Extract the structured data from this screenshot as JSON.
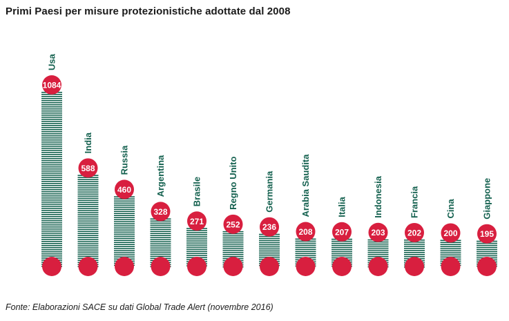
{
  "title": "Primi Paesi per misure protezionistiche adottate dal 2008",
  "source": "Fonte: Elaborazioni SACE su dati Global Trade Alert (novembre 2016)",
  "colors": {
    "bar": "#13604e",
    "circle": "#d81f3f",
    "label": "#13604e",
    "value_text": "#ffffff"
  },
  "chart_data": {
    "type": "bar",
    "categories": [
      "Usa",
      "India",
      "Russia",
      "Argentina",
      "Brasile",
      "Regno Unito",
      "Germania",
      "Arabia Saudita",
      "Italia",
      "Indonesia",
      "Francia",
      "Cina",
      "Giappone"
    ],
    "values": [
      1084,
      588,
      460,
      328,
      271,
      252,
      236,
      208,
      207,
      203,
      202,
      200,
      195
    ],
    "value_labels": [
      "1084",
      "588",
      "460",
      "328",
      "271",
      "252",
      "236",
      "208",
      "207",
      "203",
      "202",
      "200",
      "195"
    ],
    "xlabel": "",
    "ylabel": "",
    "ylim": [
      0,
      1084
    ],
    "grid": false,
    "legend": "none"
  }
}
